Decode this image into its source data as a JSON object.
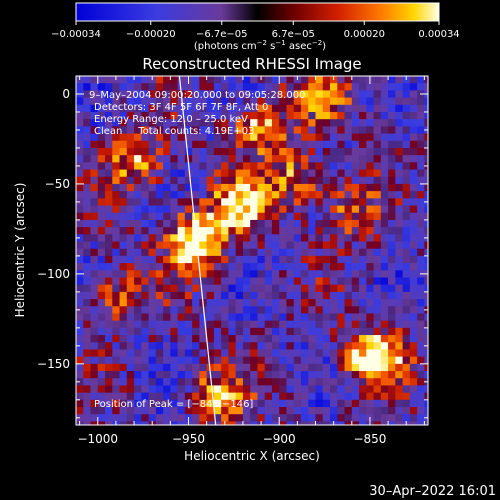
{
  "chart_data": {
    "type": "heatmap",
    "title": "Reconstructed RHESSI Image",
    "xlabel": "Heliocentric X (arcsec)",
    "ylabel": "Heliocentric Y (arcsec)",
    "xlim": [
      -1012,
      -818
    ],
    "ylim": [
      -184,
      10
    ],
    "x_ticks": [
      -1000,
      -950,
      -900,
      -850
    ],
    "x_tick_labels": [
      "−1000",
      "−950",
      "−900",
      "−850"
    ],
    "y_ticks": [
      0,
      -50,
      -100,
      -150
    ],
    "y_tick_labels": [
      "0",
      "−50",
      "−100",
      "−150"
    ],
    "colorbar": {
      "range": [
        -0.00034,
        0.00034
      ],
      "tick_values": [
        -0.00034,
        -0.0002,
        -6.7e-05,
        6.7e-05,
        0.0002,
        0.00034
      ],
      "tick_labels": [
        "−0.00034",
        "−0.00020",
        "−6.7e−05",
        "6.7e−05",
        "0.00020",
        "0.00034"
      ],
      "unit_label_parts": [
        "(photons cm",
        "−2",
        " s",
        "−1",
        " asec",
        "−2",
        ")"
      ]
    },
    "annotation_lines": [
      "9–May–2004 09:00:20.000 to 09:05:28.000",
      "Detectors: 3F 4F 5F 6F 7F 8F, Att 0",
      "Energy Range: 12.0 – 25.0 keV",
      "Clean     Total counts: 4.19E+03"
    ],
    "peak_label": "Position of Peak = [−847,−146]",
    "peak_position": [
      -847,
      -146
    ],
    "limb_line": [
      [
        -955,
        10
      ],
      [
        -935,
        -184
      ]
    ],
    "sources": [
      {
        "x": -946,
        "y": -82,
        "amplitude": 1.0
      },
      {
        "x": -921,
        "y": -62,
        "amplitude": 0.75
      },
      {
        "x": -847,
        "y": -146,
        "amplitude": 0.95
      },
      {
        "x": -978,
        "y": -38,
        "amplitude": 0.55
      },
      {
        "x": -910,
        "y": -18,
        "amplitude": 0.65
      },
      {
        "x": -890,
        "y": -48,
        "amplitude": 0.55
      },
      {
        "x": -990,
        "y": -112,
        "amplitude": 0.5
      },
      {
        "x": -935,
        "y": -168,
        "amplitude": 0.55
      },
      {
        "x": -860,
        "y": -66,
        "amplitude": 0.45
      },
      {
        "x": -875,
        "y": -2,
        "amplitude": 0.5
      }
    ],
    "timestamp": "30–Apr–2022 16:01"
  }
}
